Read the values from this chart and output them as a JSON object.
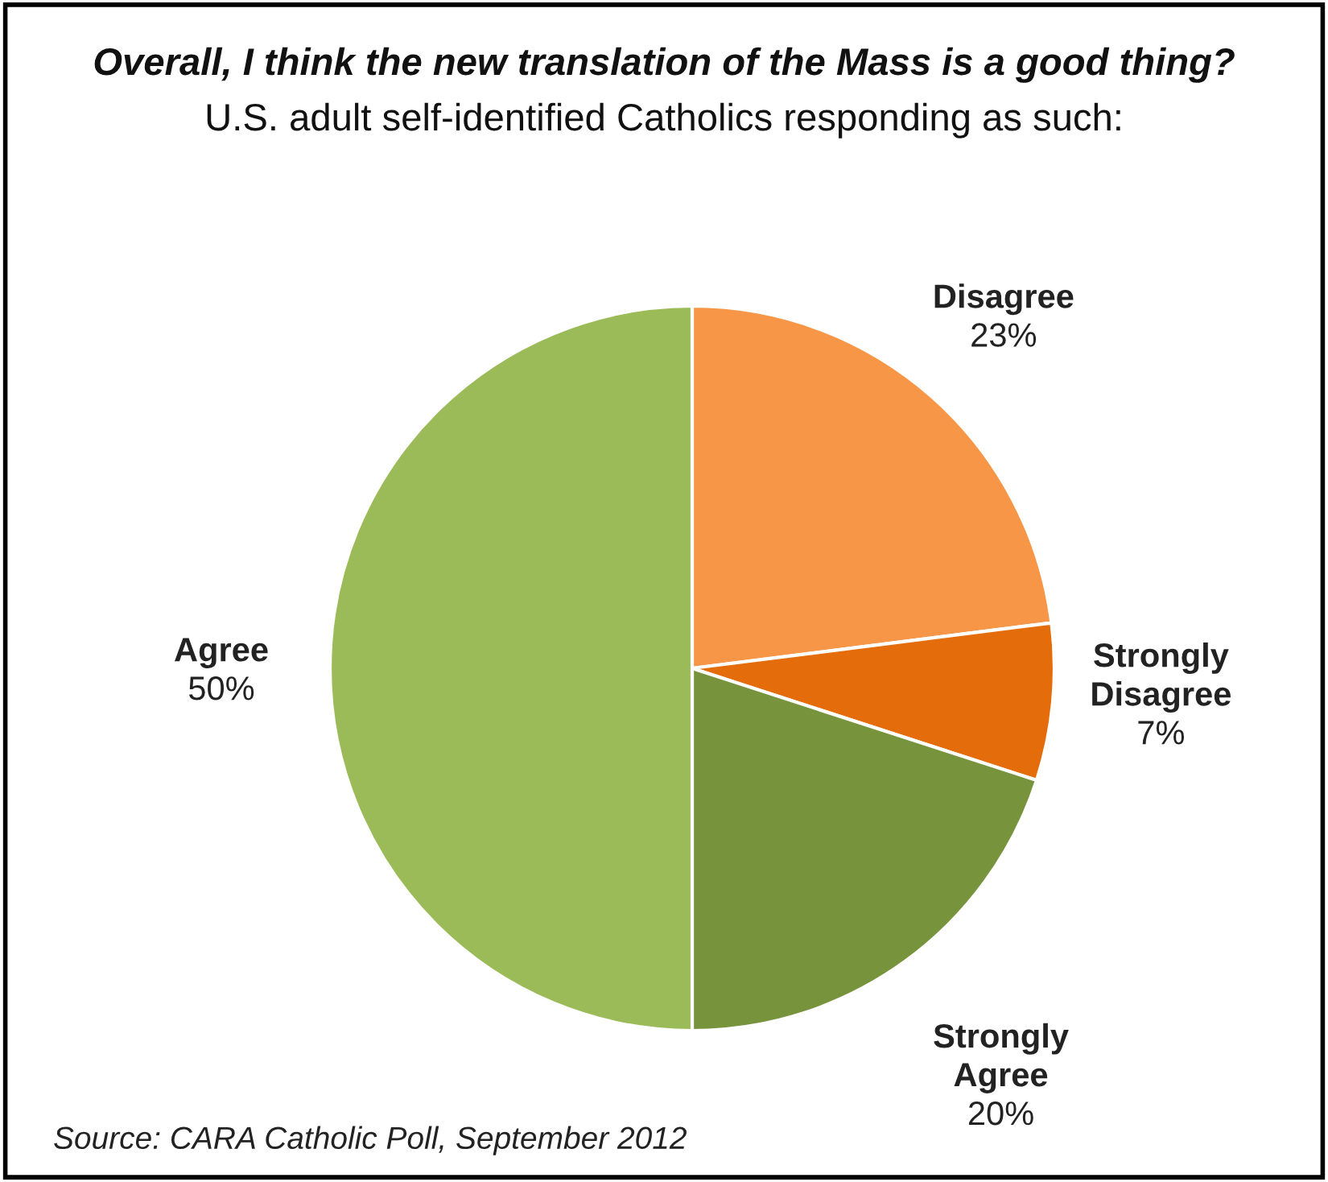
{
  "chart_data": {
    "type": "pie",
    "title": "Overall, I think the new translation of the Mass is a good thing?",
    "subtitle": "U.S. adult self-identified Catholics responding as such:",
    "categories": [
      "Disagree",
      "Strongly Disagree",
      "Strongly Agree",
      "Agree"
    ],
    "values": [
      23,
      7,
      20,
      50
    ],
    "value_labels": [
      "23%",
      "7%",
      "20%",
      "50%"
    ],
    "colors": [
      "#f79646",
      "#e46c0a",
      "#77933c",
      "#9bbb59"
    ],
    "annotations": [
      "Source: CARA Catholic Poll, September 2012"
    ]
  }
}
